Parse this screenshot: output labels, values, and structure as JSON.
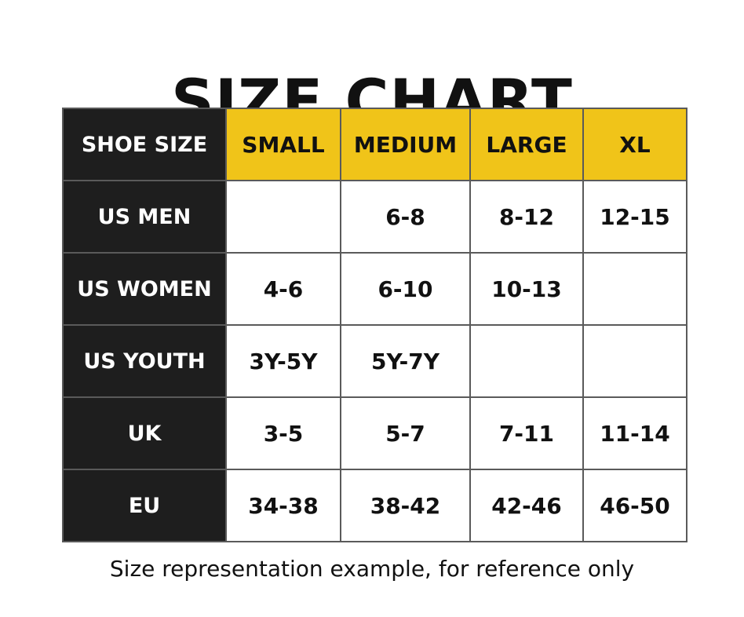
{
  "title": "SIZE CHART",
  "table": {
    "corner_label": "SHOE SIZE",
    "columns": [
      "SMALL",
      "MEDIUM",
      "LARGE",
      "XL"
    ],
    "rows": [
      {
        "label": "US MEN",
        "cells": [
          "",
          "6-8",
          "8-12",
          "12-15"
        ]
      },
      {
        "label": "US WOMEN",
        "cells": [
          "4-6",
          "6-10",
          "10-13",
          ""
        ]
      },
      {
        "label": "US YOUTH",
        "cells": [
          "3Y-5Y",
          "5Y-7Y",
          "",
          ""
        ]
      },
      {
        "label": "UK",
        "cells": [
          "3-5",
          "5-7",
          "7-11",
          "11-14"
        ]
      },
      {
        "label": "EU",
        "cells": [
          "34-38",
          "38-42",
          "42-46",
          "46-50"
        ]
      }
    ]
  },
  "footnote": "Size representation example, for reference only",
  "colors": {
    "header_yellow": "#f0c419",
    "row_header_black": "#1e1e1e",
    "grid_gray": "#5a5a5a",
    "text": "#111111"
  }
}
